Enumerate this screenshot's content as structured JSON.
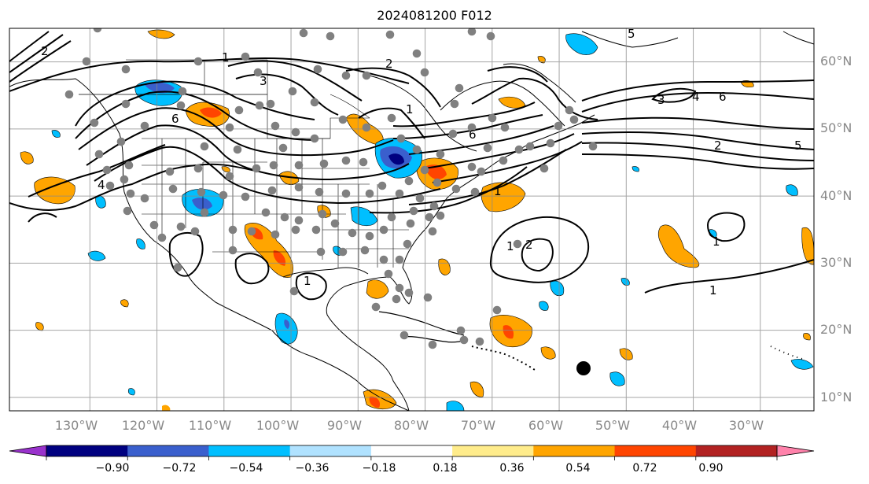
{
  "title": "2024081200 F012",
  "map": {
    "lon_range": [
      -142,
      -22
    ],
    "lat_range": [
      8,
      65
    ],
    "lon_ticks": [
      "130°W",
      "120°W",
      "110°W",
      "100°W",
      "90°W",
      "80°W",
      "70°W",
      "60°W",
      "50°W",
      "40°W",
      "30°W"
    ],
    "lat_ticks": [
      "60°N",
      "50°N",
      "40°N",
      "30°N",
      "20°N",
      "10°N"
    ],
    "grid": true,
    "contour_labels": [
      "1",
      "2",
      "3",
      "4",
      "5",
      "6",
      "1",
      "1",
      "2",
      "1",
      "1",
      "1",
      "2",
      "4",
      "6",
      "5",
      "3",
      "2",
      "1",
      "6"
    ]
  },
  "colorbar": {
    "colors": [
      "#9932cc",
      "#000080",
      "#3a5fcd",
      "#00bfff",
      "#b0e2ff",
      "#ffffff",
      "#ffec8b",
      "#ffa500",
      "#ff4500",
      "#b22222",
      "#ff82ab"
    ],
    "tick_labels": [
      "−0.90",
      "−0.72",
      "−0.54",
      "−0.36",
      "−0.18",
      "0.18",
      "0.36",
      "0.54",
      "0.72",
      "0.90"
    ]
  }
}
